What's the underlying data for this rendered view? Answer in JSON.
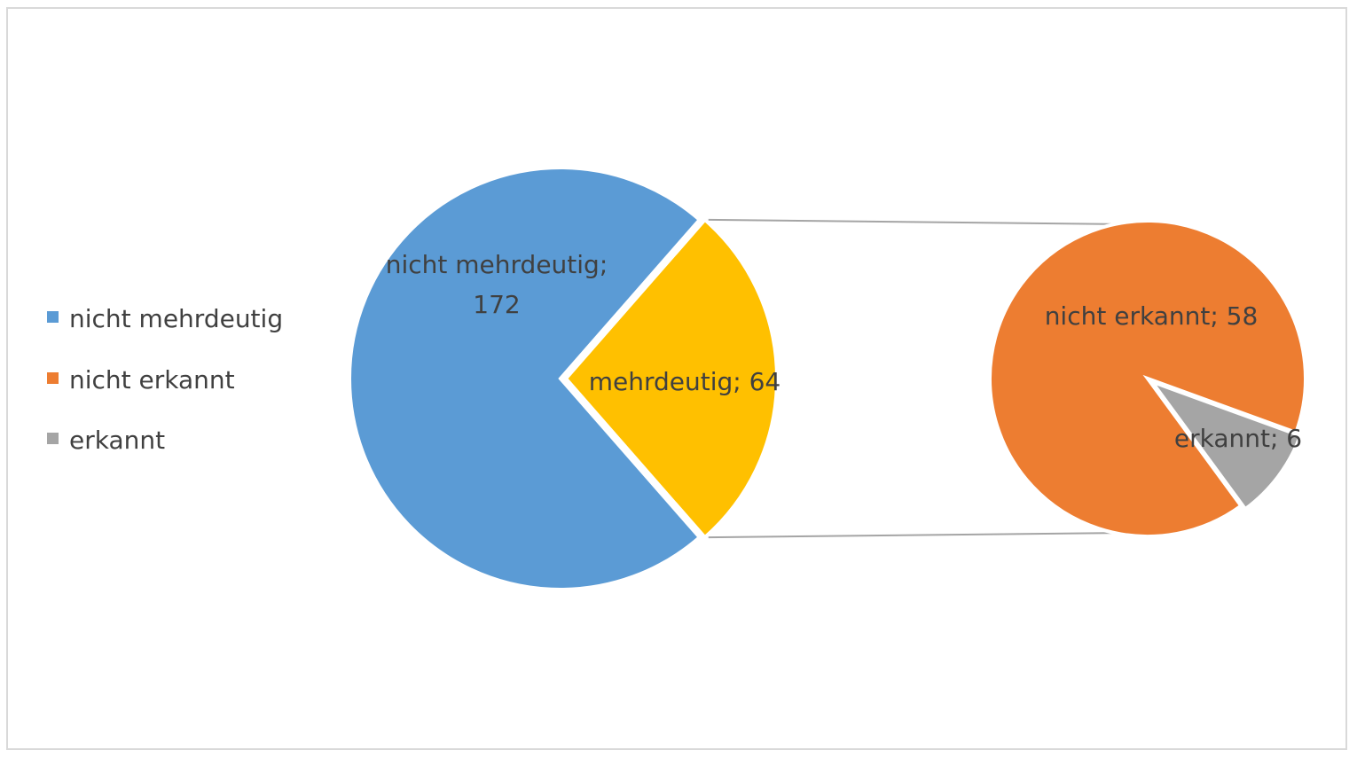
{
  "chart_data": {
    "type": "pie",
    "variant": "pie-of-pie",
    "title": "",
    "main_pie": {
      "slices": [
        {
          "label": "nicht mehrdeutig",
          "value": 172,
          "color": "#5b9bd5",
          "data_label_line1": "nicht mehrdeutig;",
          "data_label_line2": "172"
        },
        {
          "label": "mehrdeutig",
          "value": 64,
          "color": "#ffc000",
          "data_label_line1": "mehrdeutig; 64"
        }
      ]
    },
    "secondary_pie": {
      "breakdown_of": "mehrdeutig",
      "slices": [
        {
          "label": "nicht erkannt",
          "value": 58,
          "color": "#ed7d31",
          "data_label_line1": "nicht erkannt; 58"
        },
        {
          "label": "erkannt",
          "value": 6,
          "color": "#a5a5a5",
          "data_label_line1": "erkannt; 6"
        }
      ]
    },
    "legend": {
      "position": "left",
      "entries": [
        {
          "label": "nicht mehrdeutig",
          "color": "#5b9bd5"
        },
        {
          "label": "nicht erkannt",
          "color": "#ed7d31"
        },
        {
          "label": "erkannt",
          "color": "#a5a5a5"
        }
      ]
    },
    "connector_color": "#a5a5a5"
  }
}
